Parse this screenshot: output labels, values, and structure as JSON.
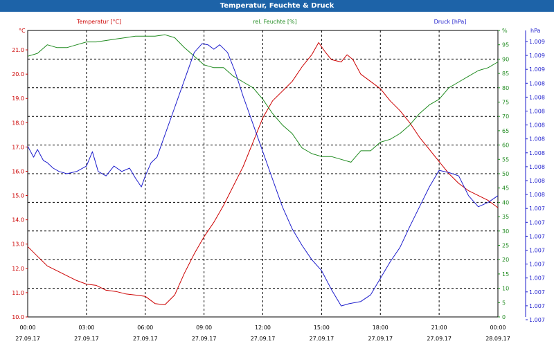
{
  "window": {
    "title": "Temperatur, Feuchte & Druck"
  },
  "chart_data": {
    "type": "line",
    "x_labels": [
      {
        "time": "00:00",
        "date": "27.09.17"
      },
      {
        "time": "03:00",
        "date": "27.09.17"
      },
      {
        "time": "06:00",
        "date": "27.09.17"
      },
      {
        "time": "09:00",
        "date": "27.09.17"
      },
      {
        "time": "12:00",
        "date": "27.09.17"
      },
      {
        "time": "15:00",
        "date": "27.09.17"
      },
      {
        "time": "18:00",
        "date": "27.09.17"
      },
      {
        "time": "21:00",
        "date": "27.09.17"
      },
      {
        "time": "00:00",
        "date": "28.09.17"
      }
    ],
    "xlim": [
      "27.09.17 00:00",
      "28.09.17 00:00"
    ],
    "grid": true,
    "axes": [
      {
        "side": "left",
        "label": "Temperatur [°C]",
        "unit": "°C",
        "color": "#cc0000",
        "ylim": [
          10.0,
          21.8
        ],
        "ticks": [
          "10.0",
          "11.0",
          "12.0",
          "13.0",
          "14.0",
          "15.0",
          "16.0",
          "17.0",
          "18.0",
          "19.0",
          "20.0",
          "21.0"
        ]
      },
      {
        "side": "right",
        "label": "rel. Feuchte [%]",
        "unit": "%",
        "color": "#1e8a1e",
        "ylim": [
          0,
          100
        ],
        "ticks": [
          "0",
          "5",
          "10",
          "15",
          "20",
          "25",
          "30",
          "35",
          "40",
          "45",
          "50",
          "55",
          "60",
          "65",
          "70",
          "75",
          "80",
          "85",
          "90",
          "95",
          "%"
        ]
      },
      {
        "side": "right-outer",
        "label": "Druck [hPa]",
        "unit": "hPa",
        "color": "#1c1ccc",
        "ylim": [
          1006.6,
          1009.2
        ],
        "ticks": [
          "1.007",
          "1.007",
          "1.007",
          "1.007",
          "1.007",
          "1.007",
          "1.007",
          "1.007",
          "1.007",
          "1.008",
          "1.008",
          "1.008",
          "1.008",
          "1.008",
          "1.008",
          "1.008",
          "1.008",
          "1.008",
          "1.009",
          "1.009",
          "1.009"
        ]
      }
    ],
    "series": [
      {
        "name": "Temperatur [°C]",
        "axis": 0,
        "color": "#cc0000",
        "points": [
          [
            0,
            12.9
          ],
          [
            0.5,
            12.5
          ],
          [
            1,
            12.1
          ],
          [
            1.5,
            11.9
          ],
          [
            2,
            11.7
          ],
          [
            2.5,
            11.5
          ],
          [
            3,
            11.35
          ],
          [
            3.5,
            11.3
          ],
          [
            4,
            11.1
          ],
          [
            4.5,
            11.05
          ],
          [
            5,
            10.95
          ],
          [
            5.5,
            10.9
          ],
          [
            6,
            10.85
          ],
          [
            6.5,
            10.55
          ],
          [
            7,
            10.5
          ],
          [
            7.5,
            10.9
          ],
          [
            8,
            11.8
          ],
          [
            8.5,
            12.6
          ],
          [
            9,
            13.3
          ],
          [
            9.5,
            13.9
          ],
          [
            10,
            14.6
          ],
          [
            10.5,
            15.4
          ],
          [
            11,
            16.2
          ],
          [
            11.5,
            17.2
          ],
          [
            12,
            18.2
          ],
          [
            12.5,
            18.9
          ],
          [
            13,
            19.3
          ],
          [
            13.5,
            19.7
          ],
          [
            14,
            20.3
          ],
          [
            14.5,
            20.8
          ],
          [
            14.85,
            21.3
          ],
          [
            15.2,
            20.9
          ],
          [
            15.5,
            20.6
          ],
          [
            16,
            20.5
          ],
          [
            16.3,
            20.8
          ],
          [
            16.6,
            20.6
          ],
          [
            17,
            20.0
          ],
          [
            17.5,
            19.7
          ],
          [
            18,
            19.4
          ],
          [
            18.5,
            18.9
          ],
          [
            19,
            18.5
          ],
          [
            19.5,
            18.0
          ],
          [
            20,
            17.4
          ],
          [
            20.5,
            16.9
          ],
          [
            21,
            16.4
          ],
          [
            21.5,
            15.9
          ],
          [
            22,
            15.5
          ],
          [
            22.5,
            15.2
          ],
          [
            23,
            15.0
          ],
          [
            23.5,
            14.8
          ],
          [
            24,
            14.5
          ]
        ]
      },
      {
        "name": "rel. Feuchte [%]",
        "axis": 1,
        "color": "#1e8a1e",
        "points": [
          [
            0,
            91
          ],
          [
            0.5,
            92
          ],
          [
            1,
            95
          ],
          [
            1.5,
            94
          ],
          [
            2,
            94
          ],
          [
            2.5,
            95
          ],
          [
            3,
            96
          ],
          [
            3.5,
            96
          ],
          [
            4,
            96.5
          ],
          [
            4.5,
            97
          ],
          [
            5,
            97.5
          ],
          [
            5.5,
            98
          ],
          [
            6,
            98
          ],
          [
            6.5,
            98
          ],
          [
            7,
            98.5
          ],
          [
            7.5,
            97.5
          ],
          [
            8,
            94
          ],
          [
            8.5,
            91
          ],
          [
            9,
            88
          ],
          [
            9.5,
            87
          ],
          [
            10,
            87
          ],
          [
            10.5,
            84
          ],
          [
            11,
            82
          ],
          [
            11.5,
            80
          ],
          [
            12,
            76
          ],
          [
            12.5,
            71
          ],
          [
            13,
            67
          ],
          [
            13.5,
            64
          ],
          [
            14,
            59
          ],
          [
            14.5,
            57
          ],
          [
            15,
            56
          ],
          [
            15.5,
            56
          ],
          [
            16,
            55
          ],
          [
            16.5,
            54
          ],
          [
            17,
            58
          ],
          [
            17.5,
            58
          ],
          [
            18,
            61
          ],
          [
            18.5,
            62
          ],
          [
            19,
            64
          ],
          [
            19.5,
            67
          ],
          [
            20,
            71
          ],
          [
            20.5,
            74
          ],
          [
            21,
            76
          ],
          [
            21.5,
            80
          ],
          [
            22,
            82
          ],
          [
            22.5,
            84
          ],
          [
            23,
            86
          ],
          [
            23.5,
            87
          ],
          [
            24,
            89
          ]
        ]
      },
      {
        "name": "Druck [hPa]",
        "axis": 2,
        "color": "#1c1ccc",
        "points": [
          [
            0,
            1008.15
          ],
          [
            0.3,
            1008.05
          ],
          [
            0.5,
            1008.12
          ],
          [
            0.8,
            1008.02
          ],
          [
            1,
            1008.0
          ],
          [
            1.3,
            1007.95
          ],
          [
            1.6,
            1007.92
          ],
          [
            2,
            1007.9
          ],
          [
            2.5,
            1007.92
          ],
          [
            3,
            1007.97
          ],
          [
            3.3,
            1008.1
          ],
          [
            3.6,
            1007.92
          ],
          [
            4,
            1007.88
          ],
          [
            4.4,
            1007.97
          ],
          [
            4.8,
            1007.92
          ],
          [
            5.2,
            1007.95
          ],
          [
            5.5,
            1007.86
          ],
          [
            5.8,
            1007.78
          ],
          [
            6,
            1007.88
          ],
          [
            6.3,
            1008.0
          ],
          [
            6.6,
            1008.05
          ],
          [
            7,
            1008.25
          ],
          [
            7.5,
            1008.5
          ],
          [
            8,
            1008.75
          ],
          [
            8.5,
            1009.0
          ],
          [
            8.9,
            1009.08
          ],
          [
            9.2,
            1009.07
          ],
          [
            9.5,
            1009.03
          ],
          [
            9.8,
            1009.07
          ],
          [
            10.2,
            1009.0
          ],
          [
            10.6,
            1008.82
          ],
          [
            11,
            1008.6
          ],
          [
            11.5,
            1008.35
          ],
          [
            12,
            1008.1
          ],
          [
            12.5,
            1007.85
          ],
          [
            13,
            1007.6
          ],
          [
            13.5,
            1007.4
          ],
          [
            14,
            1007.25
          ],
          [
            14.5,
            1007.12
          ],
          [
            15,
            1007.02
          ],
          [
            15.5,
            1006.85
          ],
          [
            16,
            1006.7
          ],
          [
            16.4,
            1006.72
          ],
          [
            17,
            1006.74
          ],
          [
            17.5,
            1006.8
          ],
          [
            18,
            1006.95
          ],
          [
            18.5,
            1007.1
          ],
          [
            19,
            1007.23
          ],
          [
            19.5,
            1007.42
          ],
          [
            20,
            1007.6
          ],
          [
            20.5,
            1007.78
          ],
          [
            21,
            1007.93
          ],
          [
            21.5,
            1007.91
          ],
          [
            22,
            1007.88
          ],
          [
            22.5,
            1007.7
          ],
          [
            23,
            1007.6
          ],
          [
            23.5,
            1007.64
          ],
          [
            24,
            1007.7
          ]
        ]
      }
    ]
  }
}
